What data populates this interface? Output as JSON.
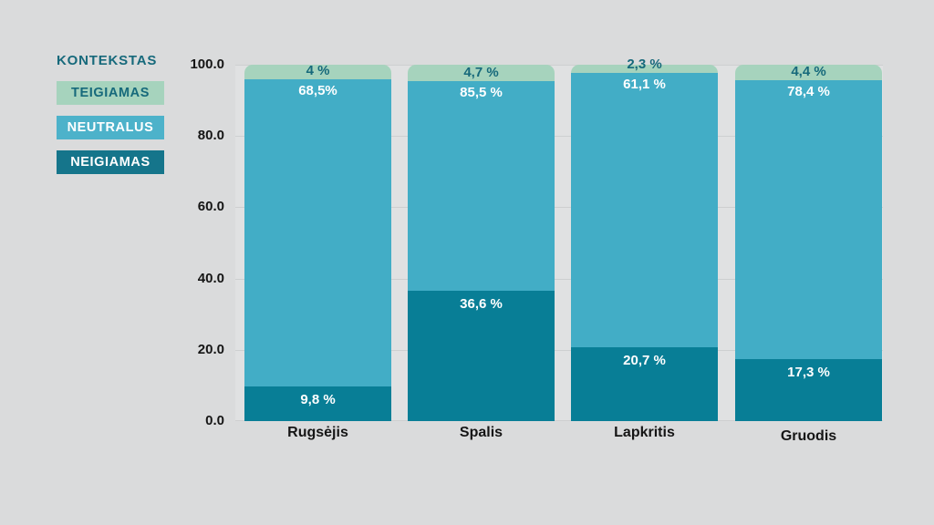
{
  "page": {
    "background": "#dadbdc",
    "plot_background": "#e0e1e2",
    "gridline_color": "#cdcfd0"
  },
  "legend": {
    "title": "KONTEKSTAS",
    "title_color": "#16697b",
    "items": [
      {
        "label": "TEIGIAMAS",
        "swatch_color": "#a6d3bd",
        "text_color": "#16697b"
      },
      {
        "label": "NEUTRALUS",
        "swatch_color": "#4db2ca",
        "text_color": "#ffffff"
      },
      {
        "label": "NEIGIAMAS",
        "swatch_color": "#15758b",
        "text_color": "#ffffff"
      }
    ]
  },
  "chart_data": {
    "type": "bar",
    "stacked": true,
    "unit": "%",
    "title": "",
    "xlabel": "",
    "ylabel": "",
    "ylim": [
      0,
      100
    ],
    "grid": true,
    "legend_position": "top-left",
    "categories": [
      "Rugsėjis",
      "Spalis",
      "Lapkritis",
      "Gruodis"
    ],
    "y_axis": {
      "ticks": [
        "100.0",
        "80.0",
        "60.0",
        "40.0",
        "20.0",
        "0.0"
      ]
    },
    "series": [
      {
        "name": "TEIGIAMAS",
        "color": "#a6d3bd",
        "label_color": "#16697b",
        "values": [
          4,
          4.7,
          2.3,
          4.4
        ],
        "labels": [
          "4 %",
          "4,7 %",
          "2,3 %",
          "4,4 %"
        ]
      },
      {
        "name": "NEUTRALUS",
        "color": "#42adc6",
        "label_color": "#ffffff",
        "values": [
          68.5,
          85.5,
          61.1,
          78.4
        ],
        "labels": [
          "68,5%",
          "85,5 %",
          "61,1 %",
          "78,4 %"
        ]
      },
      {
        "name": "NEIGIAMAS",
        "color": "#087e96",
        "label_color": "#ffffff",
        "values": [
          9.8,
          36.6,
          20.7,
          17.3
        ],
        "labels": [
          "9,8 %",
          "36,6 %",
          "20,7 %",
          "17,3 %"
        ]
      }
    ]
  }
}
